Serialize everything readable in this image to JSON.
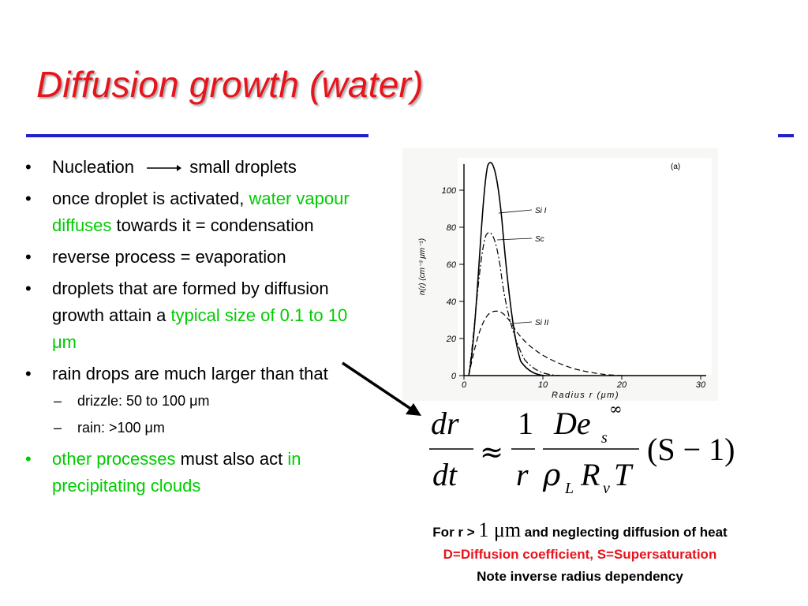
{
  "title": "Diffusion growth (water)",
  "bullets": {
    "b1_a": "Nucleation",
    "b1_b": "small droplets",
    "b2_a": "once droplet is activated, ",
    "b2_green": "water vapour diffuses",
    "b2_b": " towards it = condensation",
    "b3": "reverse process = evaporation",
    "b4_a": "droplets that are formed by diffusion growth attain a ",
    "b4_green": "typical size of 0.1 to 10 μm",
    "b5": "rain drops are much larger than that",
    "sub1": "drizzle: 50 to 100 μm",
    "sub2": "rain: >100 μm",
    "b6_green": "other processes",
    "b6_a": " must also act ",
    "b6_green2": "in precipitating clouds"
  },
  "figure": {
    "panel_label": "(a)",
    "ylabel": "n(r) (cm⁻³ μm⁻¹)",
    "xlabel": "Radius r (μm)",
    "x_ticks": [
      "0",
      "10",
      "20",
      "30"
    ],
    "y_ticks": [
      "0",
      "20",
      "40",
      "60",
      "80",
      "100"
    ],
    "curve_labels": [
      "Si I",
      "Sc",
      "Si II"
    ]
  },
  "equation": {
    "dr": "dr",
    "dt": "dt",
    "approx": "≈",
    "one": "1",
    "r": "r",
    "De": "De",
    "s_sub": "s",
    "inf_sup": "∞",
    "rho": "ρ",
    "L_sub": "L",
    "R": "R",
    "v_sub": "v",
    "T": "T",
    "paren": "(S − 1)"
  },
  "notes": {
    "line1_a": "For r > ",
    "line1_val": "1 μm",
    "line1_b": " and neglecting diffusion of heat",
    "line2": "D=Diffusion coefficient, S=Supersaturation",
    "line3": "Note inverse radius dependency"
  },
  "colors": {
    "title": "#e8141c",
    "rule": "#2020c8",
    "highlight": "#00cc00",
    "note_red": "#e8141c"
  }
}
